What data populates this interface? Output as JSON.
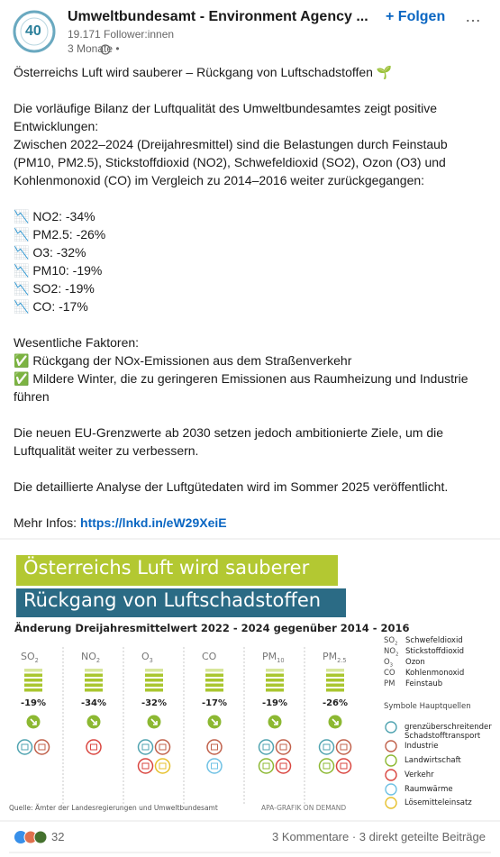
{
  "header": {
    "logo_text": "40",
    "name": "Umweltbundesamt - Environment Agency ...",
    "followers": "19.171 Follower:innen",
    "time": "3 Monate •",
    "follow": "+ Folgen",
    "more": "…"
  },
  "post": {
    "paragraphs": [
      [
        "Österreichs Luft wird sauberer – Rückgang von Luftschadstoffen 🌱"
      ],
      [
        "Die vorläufige Bilanz der Luftqualität des Umweltbundesamtes zeigt positive",
        "Entwicklungen:",
        "Zwischen 2022–2024 (Dreijahresmittel) sind die Belastungen durch Feinstaub",
        "(PM10, PM2.5), Stickstoffdioxid (NO2), Schwefeldioxid (SO2), Ozon (O3) und",
        "Kohlenmonoxid (CO) im Vergleich zu 2014–2016 weiter zurückgegangen:"
      ],
      [
        "📉 NO2: -34%",
        "📉 PM2.5: -26%",
        "📉 O3: -32%",
        "📉 PM10: -19%",
        "📉 SO2: -19%",
        "📉 CO: -17%"
      ],
      [
        "Wesentliche Faktoren:",
        "✅ Rückgang der NOx-Emissionen aus dem Straßenverkehr",
        "✅ Mildere Winter, die zu geringeren Emissionen aus Raumheizung und Industrie",
        "führen"
      ],
      [
        "Die neuen EU-Grenzwerte ab 2030 setzen jedoch ambitionierte Ziele, um die",
        "Luftqualität weiter zu verbessern."
      ],
      [
        "Die detaillierte Analyse der Luftgütedaten wird im Sommer 2025 veröffentlicht."
      ]
    ],
    "more_label": "Mehr Infos:",
    "link": "https://lnkd.in/eW29XeiE"
  },
  "infographic": {
    "title": "Österreichs Luft wird sauberer",
    "subtitle": "Rückgang von Luftschadstoffen",
    "heading": "Änderung Dreijahresmittelwert 2022 - 2024 gegenüber 2014 - 2016",
    "pollutants": [
      {
        "formula": "SO",
        "sub": "2",
        "change": "-19%"
      },
      {
        "formula": "NO",
        "sub": "2",
        "change": "-34%"
      },
      {
        "formula": "O",
        "sub": "3",
        "change": "-32%"
      },
      {
        "formula": "CO",
        "change": "-17%"
      },
      {
        "formula": "PM",
        "sub": "10",
        "change": "-19%"
      },
      {
        "formula": "PM",
        "sub": "2.5",
        "change": "-26%"
      }
    ],
    "legend": [
      {
        "formula": "SO",
        "sub": "2",
        "name": "Schwefeldioxid"
      },
      {
        "formula": "NO",
        "sub": "2",
        "name": "Stickstoffdioxid"
      },
      {
        "formula": "O",
        "sub": "3",
        "name": "Ozon"
      },
      {
        "formula": "CO",
        "name": "Kohlenmonoxid"
      },
      {
        "formula": "PM",
        "name": "Feinstaub"
      }
    ],
    "sources_title": "Symbole Hauptquellen",
    "sources": [
      "grenzüberschreitender Schadstofftransport",
      "Industrie",
      "Landwirtschaft",
      "Verkehr",
      "Raumwärme",
      "Lösemitteleinsatz"
    ],
    "credit": "Quelle: Ämter der Landesregierungen und Umweltbundesamt",
    "agency": "APA-GRAFIK ON DEMAND"
  },
  "footer": {
    "reactions": "32",
    "stats": "3 Kommentare · 3 direkt geteilte Beiträge"
  }
}
